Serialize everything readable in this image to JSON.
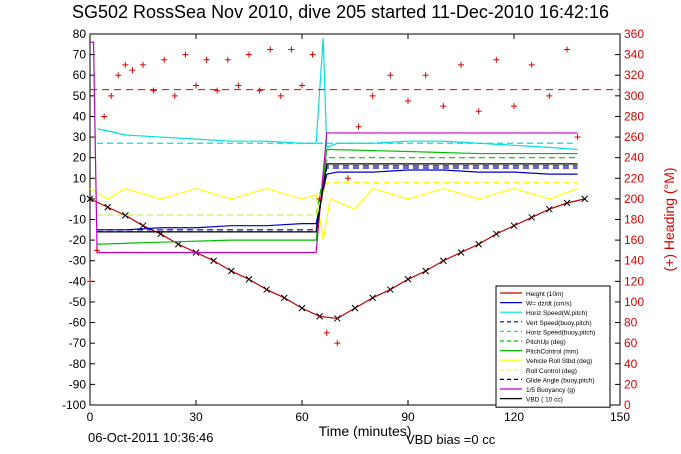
{
  "chart_data": {
    "type": "line",
    "title": "SG502 RossSea Nov 2010, dive 205 started 11-Dec-2010 16:42:16",
    "xlabel": "Time (minutes)",
    "ylabel_right": "(+) Heading (°M)",
    "xlim": [
      0,
      150
    ],
    "ylim_left": [
      -100,
      80
    ],
    "ylim_right": [
      0,
      360
    ],
    "xticks": [
      0,
      30,
      60,
      90,
      120,
      150
    ],
    "yticks_left": [
      -100,
      -90,
      -80,
      -70,
      -60,
      -50,
      -40,
      -30,
      -20,
      -10,
      0,
      10,
      20,
      30,
      40,
      50,
      60,
      70,
      80
    ],
    "yticks_right": [
      0,
      20,
      40,
      60,
      80,
      100,
      120,
      140,
      160,
      180,
      200,
      220,
      240,
      260,
      280,
      300,
      320,
      340,
      360
    ],
    "legend_position": "bottom-right",
    "colors": {
      "height": "#c00000",
      "w": "#0000c8",
      "horiz": "#00e0e0",
      "pitch": "#00c000",
      "roll": "#ffff00",
      "glide": "#000080",
      "buoy": "#c000c0",
      "vbd": "#000000",
      "heading": "#e00000"
    },
    "series": [
      {
        "name": "Height (10m)",
        "key": "height",
        "style": "solid",
        "x": [
          0,
          5,
          10,
          15,
          20,
          25,
          30,
          35,
          40,
          45,
          50,
          55,
          60,
          65,
          70,
          75,
          80,
          85,
          90,
          95,
          100,
          105,
          110,
          115,
          120,
          125,
          130,
          135,
          140
        ],
        "y": [
          0,
          -4,
          -8,
          -13,
          -17,
          -22,
          -26,
          -30,
          -35,
          -39,
          -44,
          -48,
          -53,
          -57,
          -58,
          -53,
          -48,
          -44,
          -39,
          -35,
          -30,
          -26,
          -22,
          -17,
          -13,
          -9,
          -5,
          -2,
          0
        ]
      },
      {
        "name": "W= dz/dt (cm/s)",
        "key": "w",
        "style": "solid",
        "x": [
          2,
          10,
          20,
          30,
          40,
          50,
          60,
          64,
          67,
          70,
          80,
          90,
          100,
          110,
          120,
          130,
          138
        ],
        "y": [
          -15,
          -15,
          -14,
          -14,
          -13,
          -13,
          -12,
          -12,
          12,
          13,
          13,
          14,
          14,
          13,
          13,
          12,
          12
        ]
      },
      {
        "name": "Horiz Speed(W,pitch)",
        "key": "horiz",
        "style": "solid",
        "x": [
          2,
          5,
          10,
          20,
          30,
          40,
          50,
          60,
          64,
          66,
          67,
          70,
          80,
          90,
          100,
          110,
          120,
          130,
          138
        ],
        "y": [
          34,
          33,
          31,
          30,
          29,
          28,
          28,
          27,
          27,
          78,
          25,
          27,
          27,
          28,
          28,
          27,
          26,
          25,
          24
        ]
      },
      {
        "name": "Vert Speed(buoy,pitch)",
        "key": "w",
        "style": "dashed",
        "x": [
          2,
          64,
          67,
          138
        ],
        "y": [
          -16,
          -16,
          15,
          15
        ]
      },
      {
        "name": "Horiz Speed(buoy,pitch)",
        "key": "horiz",
        "style": "dashed",
        "x": [
          2,
          64,
          67,
          138
        ],
        "y": [
          27,
          27,
          27,
          27
        ]
      },
      {
        "name": "PitchUp (deg)",
        "key": "pitch",
        "style": "dashed",
        "x": [
          2,
          64,
          67,
          138
        ],
        "y": [
          -8,
          -8,
          20,
          20
        ]
      },
      {
        "name": "PitchControl (mm)",
        "key": "pitch",
        "style": "solid",
        "x": [
          2,
          20,
          40,
          64,
          67,
          90,
          110,
          138
        ],
        "y": [
          -22,
          -21,
          -20,
          -20,
          24,
          23,
          22,
          22
        ]
      },
      {
        "name": "Vehicle Roll Stbd (deg)",
        "key": "roll",
        "style": "solid",
        "x": [
          0,
          5,
          10,
          20,
          30,
          40,
          50,
          60,
          64,
          66,
          68,
          75,
          80,
          90,
          100,
          110,
          120,
          130,
          138
        ],
        "y": [
          5,
          0,
          5,
          0,
          5,
          0,
          5,
          0,
          2,
          -20,
          0,
          -5,
          5,
          0,
          5,
          0,
          5,
          0,
          5
        ]
      },
      {
        "name": "Roll Control (deg)",
        "key": "roll",
        "style": "dashed",
        "x": [
          2,
          64,
          67,
          138
        ],
        "y": [
          -8,
          -8,
          8,
          8
        ]
      },
      {
        "name": "Glide Angle (buoy,pitch)",
        "key": "glide",
        "style": "dashed",
        "x": [
          2,
          64,
          67,
          138
        ],
        "y": [
          -15,
          -15,
          16,
          16
        ]
      },
      {
        "name": "1/5 Buoyancy (g)",
        "key": "buoy",
        "style": "solid",
        "x": [
          0,
          1,
          2,
          64,
          67,
          138
        ],
        "y": [
          76,
          76,
          -26,
          -26,
          32,
          32
        ]
      },
      {
        "name": "VBD ( 10 cc)",
        "key": "vbd",
        "style": "solid",
        "x": [
          2,
          64,
          67,
          138
        ],
        "y": [
          -16,
          -16,
          17,
          17
        ]
      }
    ],
    "heading": {
      "name": "(+) Heading (°M)",
      "reference_deg": 306,
      "x": [
        0,
        2,
        4,
        6,
        8,
        10,
        12,
        15,
        18,
        21,
        24,
        27,
        30,
        33,
        36,
        39,
        42,
        45,
        48,
        51,
        54,
        57,
        60,
        63,
        65,
        67,
        70,
        73,
        76,
        80,
        85,
        90,
        95,
        100,
        105,
        110,
        115,
        120,
        125,
        130,
        135,
        138
      ],
      "y": [
        120,
        150,
        280,
        300,
        320,
        330,
        325,
        330,
        305,
        335,
        300,
        340,
        310,
        335,
        305,
        335,
        310,
        340,
        305,
        345,
        300,
        345,
        310,
        340,
        200,
        70,
        60,
        220,
        270,
        300,
        320,
        295,
        320,
        290,
        330,
        285,
        335,
        290,
        330,
        300,
        345,
        260
      ]
    },
    "legend": [
      "Height (10m)",
      "W= dz/dt (cm/s)",
      "Horiz Speed(W,pitch)",
      "Vert Speed(buoy,pitch)",
      "Horiz Speed(buoy,pitch)",
      "PitchUp (deg)",
      "PitchControl (mm)",
      "Vehicle Roll Stbd (deg)",
      "Roll Control (deg)",
      "Glide Angle (buoy,pitch)",
      "1/5 Buoyancy (g)",
      "VBD ( 10 cc)"
    ]
  },
  "footer": {
    "date": "06-Oct-2011 10:36:46",
    "vbd_bias": "VBD bias =0 cc"
  }
}
